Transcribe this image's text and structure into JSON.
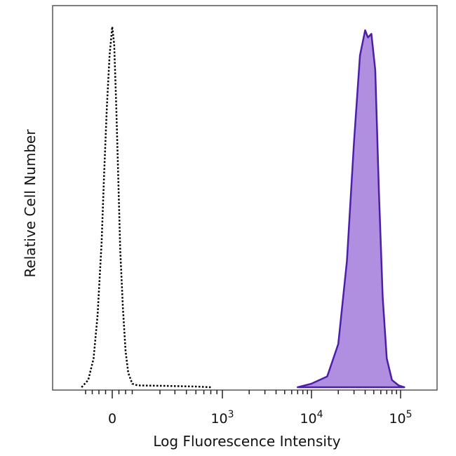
{
  "chart_data": {
    "type": "area",
    "title": "",
    "xlabel": "Log Fluorescence Intensity",
    "ylabel": "Relative Cell Number",
    "x_scale": "biexponential",
    "x_ticks": [
      {
        "value": 0,
        "base": "0",
        "exp": ""
      },
      {
        "value": 1000,
        "base": "10",
        "exp": "3"
      },
      {
        "value": 10000,
        "base": "10",
        "exp": "4"
      },
      {
        "value": 100000,
        "base": "10",
        "exp": "5"
      }
    ],
    "xlim": [
      -300,
      200000
    ],
    "ylim": [
      0,
      1
    ],
    "grid": false,
    "legend": "none",
    "series": [
      {
        "style": "dotted-outline",
        "color": "#000000",
        "x": [
          -230,
          -180,
          -140,
          -110,
          -80,
          -60,
          -40,
          -20,
          0,
          15,
          30,
          45,
          60,
          80,
          100,
          120,
          150,
          190,
          300,
          600,
          800
        ],
        "y": [
          0,
          0.02,
          0.08,
          0.2,
          0.4,
          0.6,
          0.78,
          0.92,
          1.0,
          0.95,
          0.78,
          0.58,
          0.38,
          0.22,
          0.1,
          0.04,
          0.01,
          0.005,
          0.004,
          0.002,
          0
        ]
      },
      {
        "style": "filled",
        "color": "#4b1fa8",
        "fill": "#b08ee0",
        "x": [
          7000,
          10000,
          15000,
          20000,
          25000,
          30000,
          35000,
          40000,
          43000,
          47000,
          52000,
          57000,
          63000,
          70000,
          80000,
          95000,
          110000
        ],
        "y": [
          0,
          0.01,
          0.03,
          0.12,
          0.35,
          0.68,
          0.92,
          0.99,
          0.97,
          0.98,
          0.88,
          0.55,
          0.25,
          0.08,
          0.02,
          0.005,
          0
        ]
      }
    ]
  }
}
